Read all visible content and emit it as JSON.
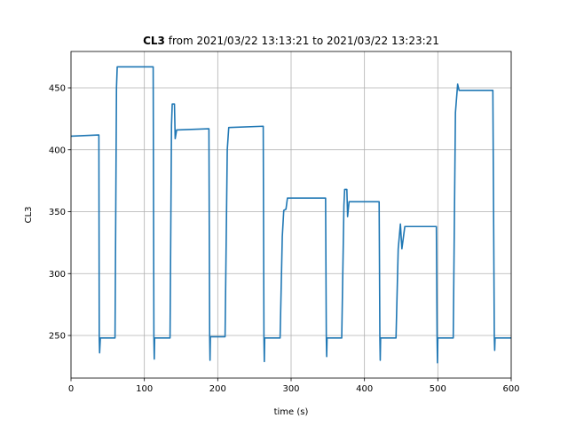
{
  "chart_data": {
    "type": "line",
    "title_bold": "CL3",
    "title": "from 2021/03/22 13:13:21 to 2021/03/22 13:23:21",
    "xlabel": "time (s)",
    "ylabel": "CL3",
    "color": "#1f77b4",
    "grid": true,
    "xlim": [
      0,
      600
    ],
    "ylim": [
      215.6,
      479.4
    ],
    "xticks": [
      0,
      100,
      200,
      300,
      400,
      500,
      600
    ],
    "yticks": [
      250,
      300,
      350,
      400,
      450
    ],
    "x": [
      0,
      38,
      38.5,
      39,
      40,
      60,
      62,
      63,
      112,
      113,
      113.5,
      114,
      135,
      137,
      138,
      141,
      142,
      144,
      188,
      189,
      189.5,
      190,
      210,
      213,
      215,
      262,
      263,
      263.5,
      264,
      285,
      288,
      290,
      293,
      295,
      347,
      348,
      348.5,
      349,
      369,
      372,
      373,
      376,
      377,
      379,
      420,
      421,
      421.5,
      422,
      443,
      446,
      449,
      451,
      455,
      498,
      499,
      499.5,
      500,
      521,
      524,
      527,
      529,
      575,
      577,
      577.5,
      578,
      600
    ],
    "values": [
      411,
      412,
      248,
      236,
      248,
      248,
      450,
      467,
      467,
      248,
      231,
      248,
      248,
      420,
      437,
      437,
      409,
      416,
      417,
      249,
      230,
      249,
      249,
      400,
      418,
      419,
      248,
      229,
      248,
      248,
      330,
      351,
      352,
      361,
      361,
      248,
      233,
      248,
      248,
      355,
      368,
      368,
      346,
      358,
      358,
      248,
      230,
      248,
      248,
      320,
      340,
      320,
      338,
      338,
      248,
      228,
      248,
      248,
      430,
      453,
      448,
      448,
      248,
      238,
      248,
      248
    ]
  }
}
